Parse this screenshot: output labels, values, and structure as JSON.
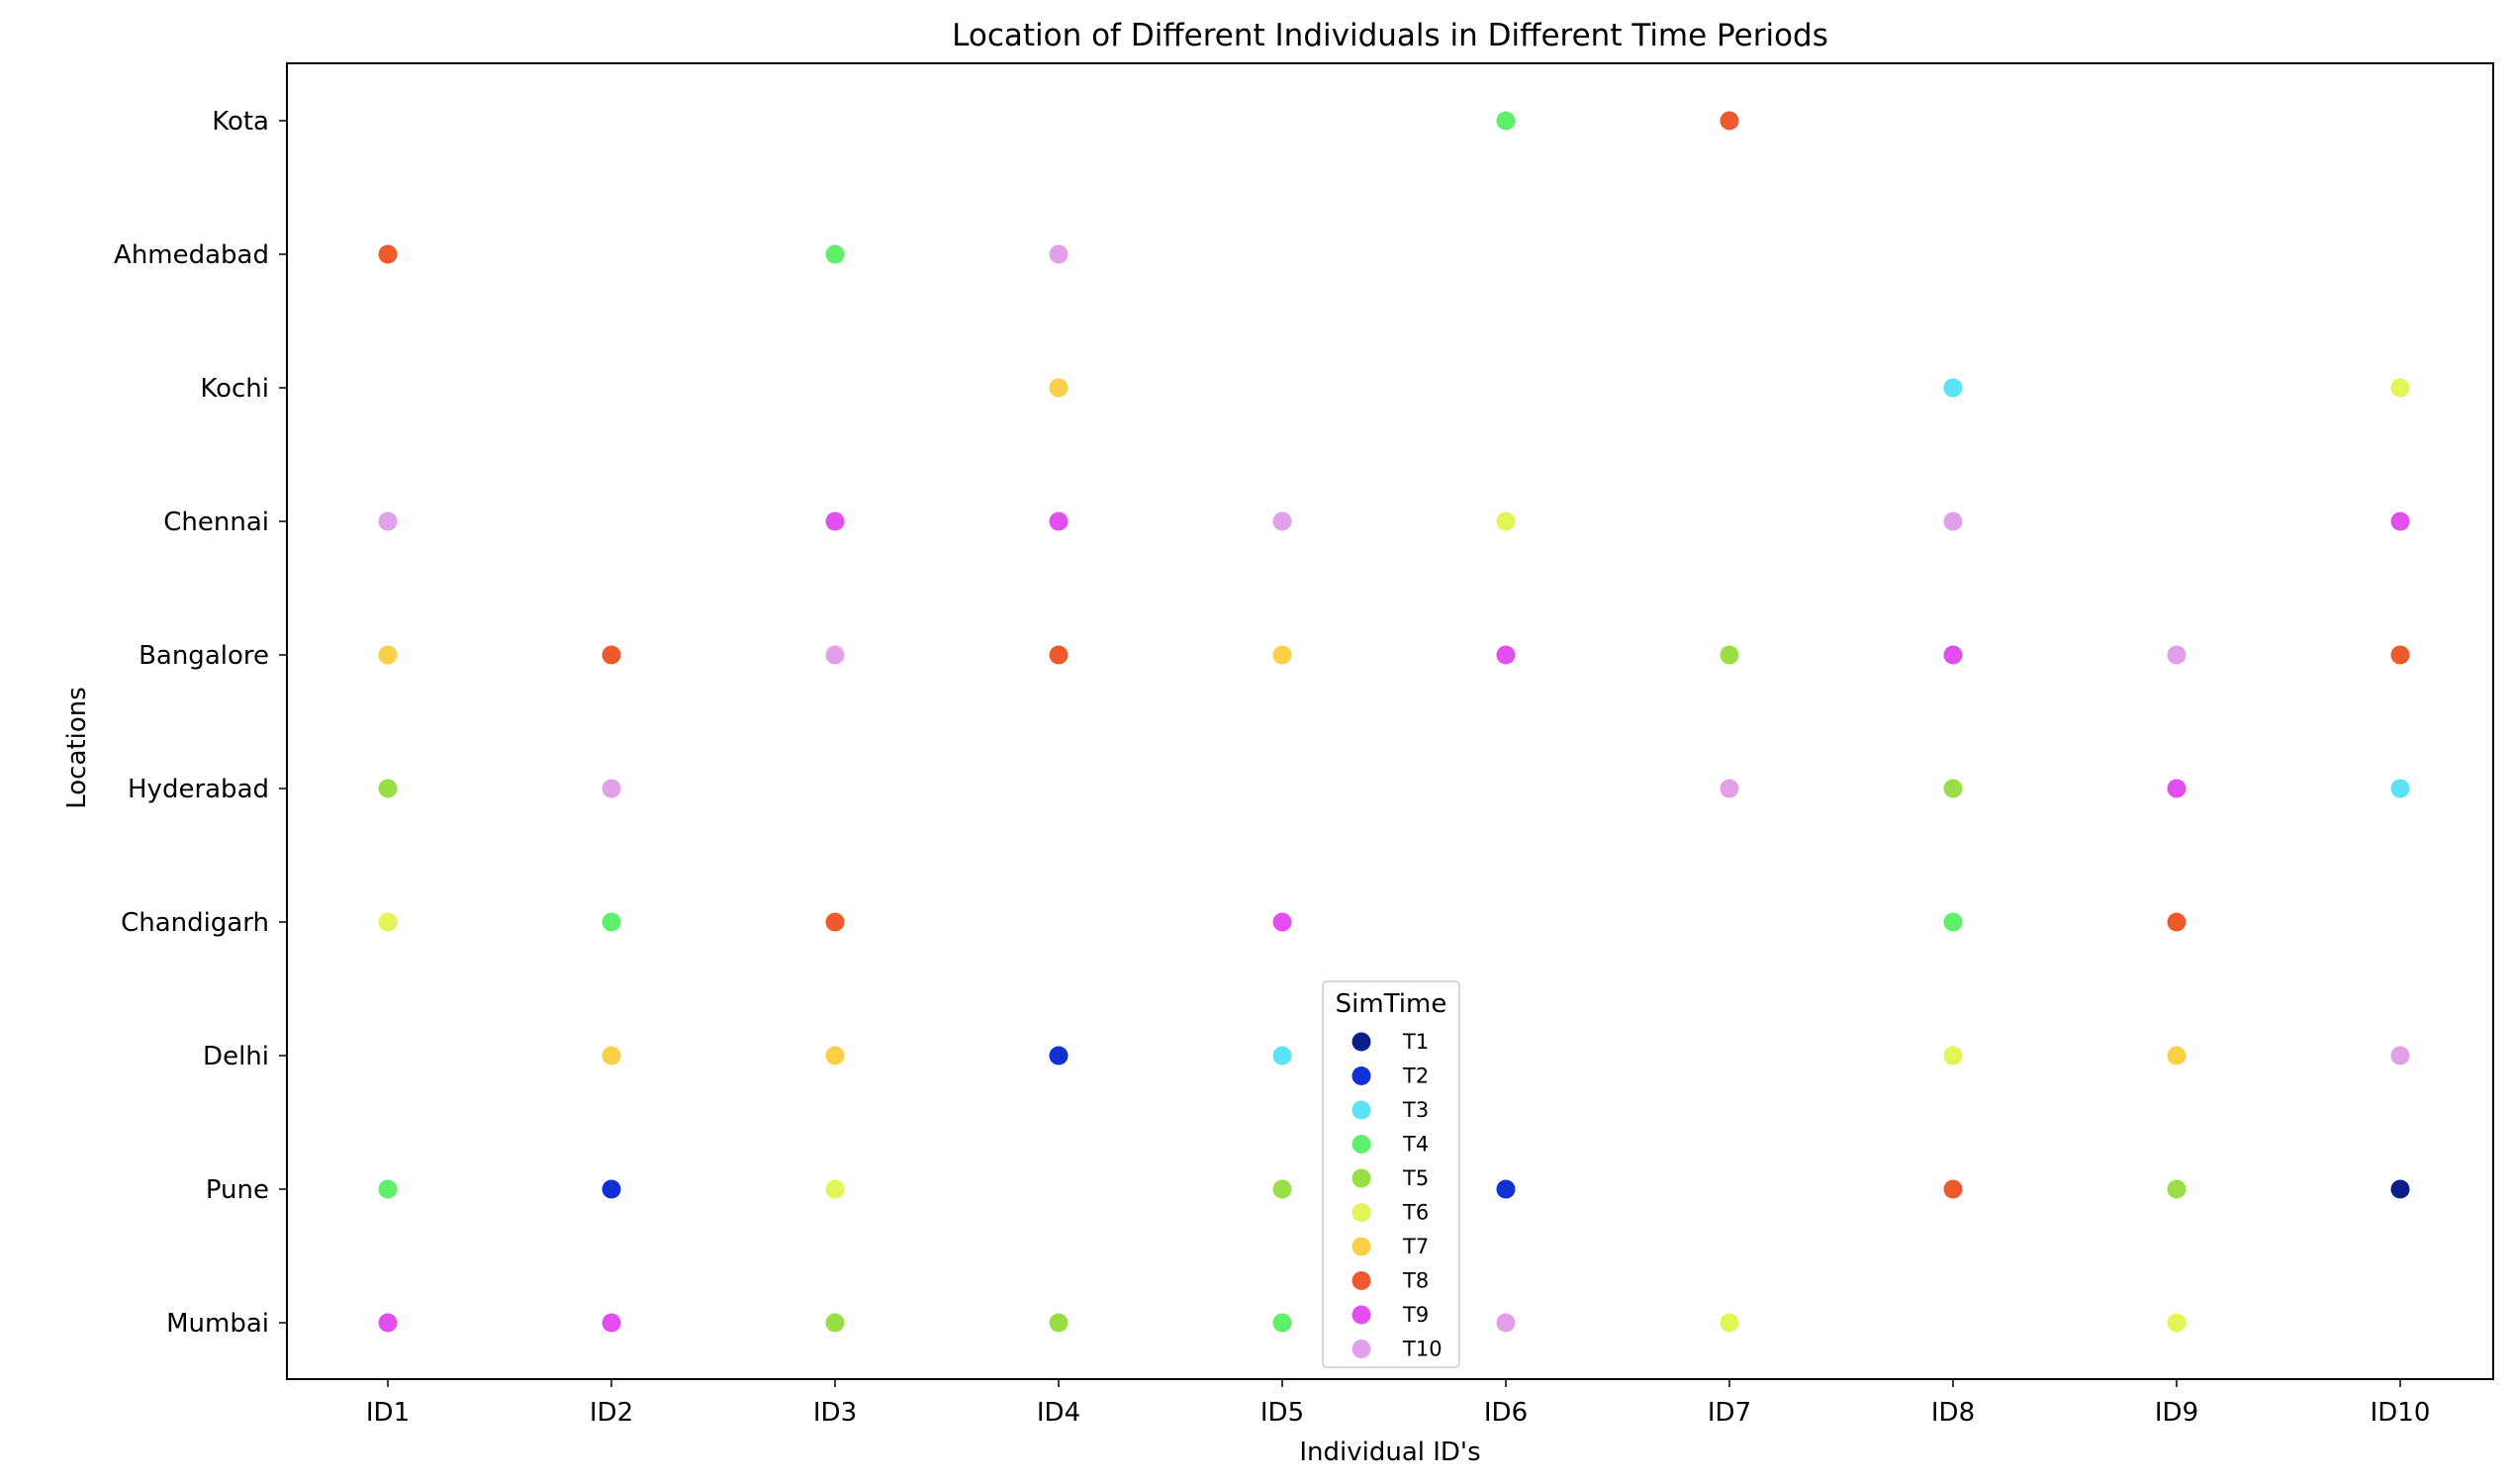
{
  "chart_data": {
    "type": "scatter",
    "title": "Location of Different Individuals in Different Time Periods",
    "xlabel": "Individual ID's",
    "ylabel": "Locations",
    "categories_x": [
      "ID1",
      "ID2",
      "ID3",
      "ID4",
      "ID5",
      "ID6",
      "ID7",
      "ID8",
      "ID9",
      "ID10"
    ],
    "categories_y": [
      "Mumbai",
      "Pune",
      "Delhi",
      "Chandigarh",
      "Hyderabad",
      "Bangalore",
      "Chennai",
      "Kochi",
      "Ahmedabad",
      "Kota"
    ],
    "grid": false,
    "legend": {
      "title": "SimTime",
      "placement": "lower-center"
    },
    "series": [
      {
        "name": "T1",
        "color": "#0b1f8a",
        "points": [
          [
            "ID10",
            "Pune"
          ]
        ]
      },
      {
        "name": "T2",
        "color": "#1030d6",
        "points": [
          [
            "ID2",
            "Pune"
          ],
          [
            "ID4",
            "Delhi"
          ],
          [
            "ID6",
            "Pune"
          ]
        ]
      },
      {
        "name": "T3",
        "color": "#5ae3f5",
        "points": [
          [
            "ID5",
            "Delhi"
          ],
          [
            "ID8",
            "Kochi"
          ],
          [
            "ID10",
            "Hyderabad"
          ]
        ]
      },
      {
        "name": "T4",
        "color": "#5ef06b",
        "points": [
          [
            "ID1",
            "Pune"
          ],
          [
            "ID2",
            "Chandigarh"
          ],
          [
            "ID3",
            "Ahmedabad"
          ],
          [
            "ID5",
            "Mumbai"
          ],
          [
            "ID6",
            "Kota"
          ],
          [
            "ID8",
            "Chandigarh"
          ]
        ]
      },
      {
        "name": "T5",
        "color": "#98df46",
        "points": [
          [
            "ID1",
            "Hyderabad"
          ],
          [
            "ID3",
            "Mumbai"
          ],
          [
            "ID4",
            "Mumbai"
          ],
          [
            "ID5",
            "Pune"
          ],
          [
            "ID7",
            "Bangalore"
          ],
          [
            "ID8",
            "Hyderabad"
          ],
          [
            "ID9",
            "Pune"
          ]
        ]
      },
      {
        "name": "T6",
        "color": "#e3f455",
        "points": [
          [
            "ID1",
            "Chandigarh"
          ],
          [
            "ID3",
            "Pune"
          ],
          [
            "ID6",
            "Chennai"
          ],
          [
            "ID7",
            "Mumbai"
          ],
          [
            "ID8",
            "Delhi"
          ],
          [
            "ID9",
            "Mumbai"
          ],
          [
            "ID10",
            "Kochi"
          ]
        ]
      },
      {
        "name": "T7",
        "color": "#fbcf48",
        "points": [
          [
            "ID1",
            "Bangalore"
          ],
          [
            "ID2",
            "Delhi"
          ],
          [
            "ID3",
            "Delhi"
          ],
          [
            "ID4",
            "Kochi"
          ],
          [
            "ID5",
            "Bangalore"
          ],
          [
            "ID9",
            "Delhi"
          ]
        ]
      },
      {
        "name": "T8",
        "color": "#ef5a2d",
        "points": [
          [
            "ID1",
            "Ahmedabad"
          ],
          [
            "ID2",
            "Bangalore"
          ],
          [
            "ID3",
            "Chandigarh"
          ],
          [
            "ID4",
            "Bangalore"
          ],
          [
            "ID7",
            "Kota"
          ],
          [
            "ID8",
            "Pune"
          ],
          [
            "ID9",
            "Chandigarh"
          ],
          [
            "ID10",
            "Bangalore"
          ]
        ]
      },
      {
        "name": "T9",
        "color": "#e24ef0",
        "points": [
          [
            "ID1",
            "Mumbai"
          ],
          [
            "ID2",
            "Mumbai"
          ],
          [
            "ID3",
            "Chennai"
          ],
          [
            "ID4",
            "Chennai"
          ],
          [
            "ID5",
            "Chandigarh"
          ],
          [
            "ID6",
            "Bangalore"
          ],
          [
            "ID8",
            "Bangalore"
          ],
          [
            "ID9",
            "Hyderabad"
          ],
          [
            "ID10",
            "Chennai"
          ]
        ]
      },
      {
        "name": "T10",
        "color": "#e2a0ea",
        "points": [
          [
            "ID1",
            "Chennai"
          ],
          [
            "ID2",
            "Hyderabad"
          ],
          [
            "ID3",
            "Bangalore"
          ],
          [
            "ID4",
            "Ahmedabad"
          ],
          [
            "ID5",
            "Chennai"
          ],
          [
            "ID6",
            "Mumbai"
          ],
          [
            "ID7",
            "Hyderabad"
          ],
          [
            "ID8",
            "Chennai"
          ],
          [
            "ID9",
            "Bangalore"
          ],
          [
            "ID10",
            "Delhi"
          ]
        ]
      }
    ]
  }
}
